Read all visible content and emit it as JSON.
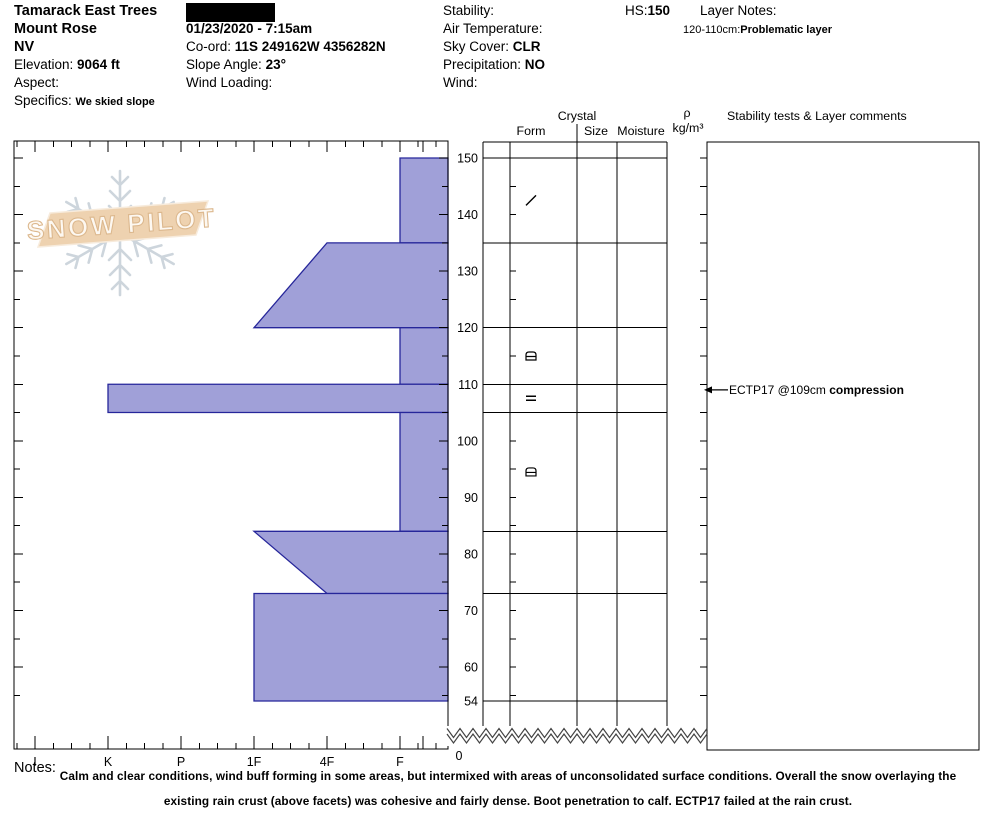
{
  "header": {
    "site_name": "Tamarack East Trees",
    "range": "Mount Rose",
    "state": "NV",
    "elevation_label": "Elevation: ",
    "elevation_value": "9064 ft",
    "aspect_label": "Aspect:",
    "specifics_label": "Specifics: ",
    "specifics_value": "We skied slope",
    "datetime": "01/23/2020 - 7:15am",
    "coord_label": "Co-ord: ",
    "coord_value": "11S 249162W 4356282N",
    "slope_angle_label": "Slope Angle: ",
    "slope_angle_value": "23°",
    "wind_loading_label": "Wind Loading:",
    "stability_label": "Stability:",
    "air_temp_label": "Air Temperature:",
    "sky_cover_label": "Sky Cover: ",
    "sky_cover_value": "CLR",
    "precip_label": "Precipitation: ",
    "precip_value": "NO",
    "wind_label": "Wind:",
    "hs_label": "HS:",
    "hs_value": "150",
    "layer_notes_label": "Layer Notes:",
    "layer_note_range": "120-110cm:",
    "layer_note_text": "Problematic layer"
  },
  "panel_headers": {
    "crystal": "Crystal",
    "form": "Form",
    "size": "Size",
    "moisture": "Moisture",
    "rho": "ρ",
    "rho_units": "kg/m³",
    "comments": "Stability tests & Layer comments"
  },
  "logo": {
    "text": "SNOW PILOT"
  },
  "notes": {
    "label": "Notes:",
    "text": "Calm and clear conditions, wind buff forming in some areas, but intermixed with areas of unconsolidated surface conditions. Overall the snow overlaying the existing rain crust (above facets) was cohesive and fairly dense. Boot penetration to calf.  ECTP17 failed at the rain crust."
  },
  "chart_data": {
    "type": "bar",
    "subtype": "snow-profile-hardness",
    "depth_unit": "cm",
    "snow_height_cm": 150,
    "pit_bottom_cm": 54,
    "depth_axis_break_label": "0",
    "depth_tick_labels": [
      150,
      140,
      130,
      120,
      110,
      100,
      90,
      80,
      70,
      60,
      54
    ],
    "hardness_categories": [
      "I",
      "K",
      "P",
      "1F",
      "4F",
      "F"
    ],
    "layers": [
      {
        "top_cm": 150,
        "bottom_cm": 135,
        "hardness_top": "F",
        "hardness_bottom": "F"
      },
      {
        "top_cm": 135,
        "bottom_cm": 120,
        "hardness_top": "4F",
        "hardness_bottom": "1F"
      },
      {
        "top_cm": 120,
        "bottom_cm": 110,
        "hardness_top": "F",
        "hardness_bottom": "F"
      },
      {
        "top_cm": 110,
        "bottom_cm": 105,
        "hardness_top": "K",
        "hardness_bottom": "K"
      },
      {
        "top_cm": 105,
        "bottom_cm": 84,
        "hardness_top": "F",
        "hardness_bottom": "F"
      },
      {
        "top_cm": 84,
        "bottom_cm": 73,
        "hardness_top": "1F",
        "hardness_bottom": "4F"
      },
      {
        "top_cm": 73,
        "bottom_cm": 54,
        "hardness_top": "1F",
        "hardness_bottom": "1F"
      }
    ],
    "layer_boundaries_cm": [
      150,
      135,
      120,
      110,
      105,
      84,
      73,
      54
    ],
    "crystal_symbols": [
      {
        "depth_cm": 142.5,
        "glyph": "slash"
      },
      {
        "depth_cm": 115,
        "glyph": "crust"
      },
      {
        "depth_cm": 107.5,
        "glyph": "double-bar"
      },
      {
        "depth_cm": 94.5,
        "glyph": "crust"
      }
    ],
    "stability_test_annotation": {
      "prefix": "ECTP17 @109cm ",
      "bold": "compression",
      "depth_cm": 109
    },
    "colors": {
      "bar_fill": "#a0a0d8",
      "bar_stroke": "#26269a",
      "grid": "#000000",
      "logo_banner": "#eed2b0",
      "logo_flake": "#c8d1d9"
    },
    "legend": "off",
    "grid": "layer-boundaries"
  }
}
